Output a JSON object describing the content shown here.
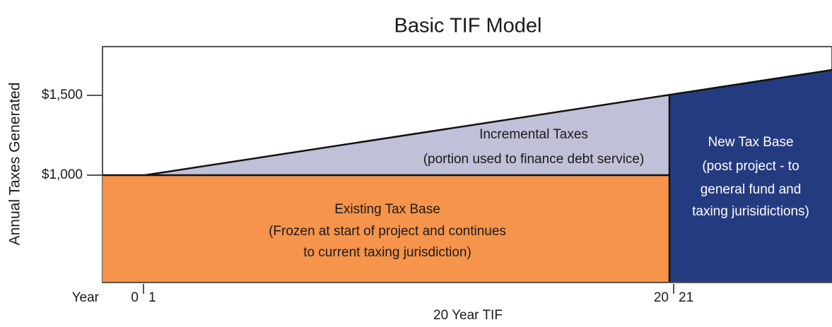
{
  "title": "Basic TIF Model",
  "y_axis_label": "Annual Taxes Generated",
  "y_ticks": [
    "$1,500",
    "$1,000"
  ],
  "x_axis_label": "Year",
  "x_ticks": [
    "0",
    "1",
    "20",
    "21"
  ],
  "x_title": "20 Year TIF",
  "regions": [
    {
      "title": "Incremental Taxes",
      "text": [
        "(portion used to finance debt service)"
      ]
    },
    {
      "title": "Existing Tax Base",
      "text": [
        "(Frozen at start of project and continues",
        "to current taxing jurisdiction)"
      ]
    },
    {
      "title": "New Tax Base",
      "text": [
        "(post project - to",
        "general fund and",
        "taxing jurisidictions)"
      ]
    }
  ]
}
